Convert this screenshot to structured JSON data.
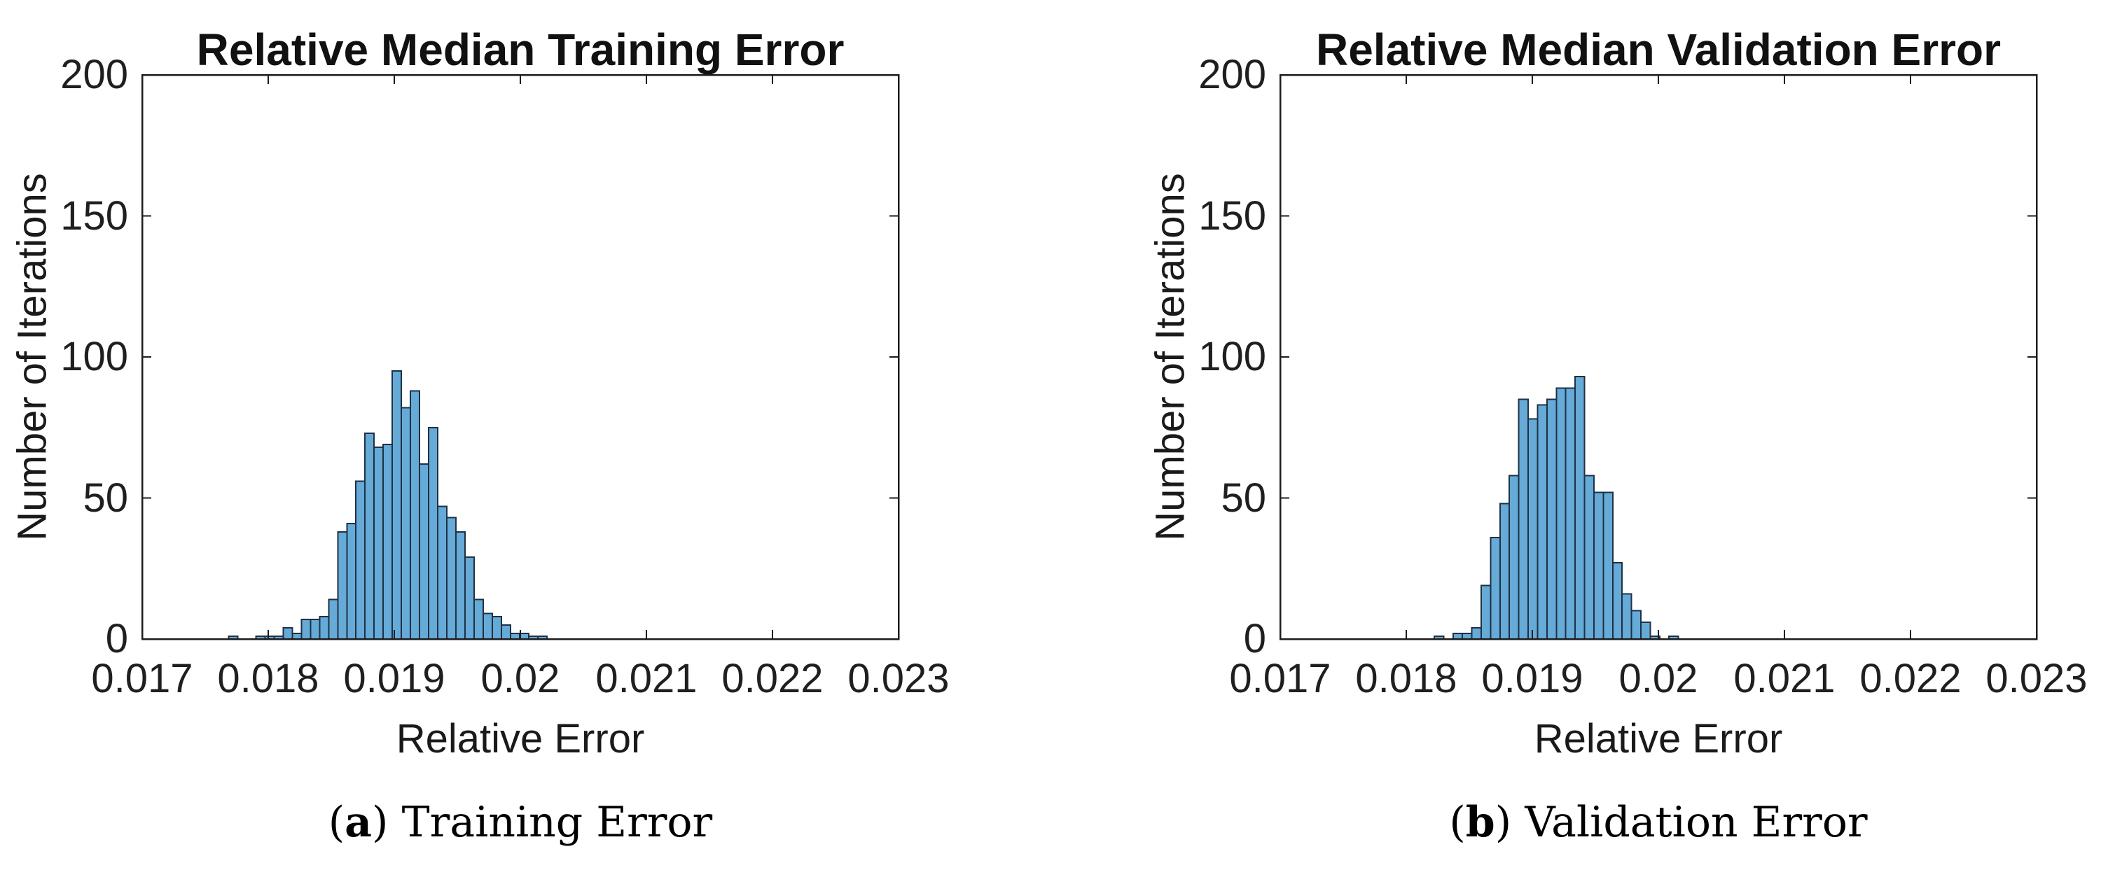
{
  "figure": {
    "background": "#ffffff"
  },
  "colors": {
    "axis": "#1c1c1c",
    "text": "#1a1a1a",
    "bar_fill": "#66aad7",
    "bar_edge": "#1f3144"
  },
  "captions": [
    {
      "open": "(",
      "letter": "a",
      "close": ")",
      "text": "Training Error"
    },
    {
      "open": "(",
      "letter": "b",
      "close": ")",
      "text": "Validation Error"
    }
  ],
  "chart_data": [
    {
      "type": "histogram",
      "title": "Relative Median Training Error",
      "xlabel": "Relative Error",
      "ylabel": "Number of Iterations",
      "xlim": [
        0.017,
        0.023
      ],
      "ylim": [
        0,
        200
      ],
      "grid": false,
      "x_tick_values": [
        0.017,
        0.018,
        0.019,
        0.02,
        0.021,
        0.022,
        0.023
      ],
      "x_tick_labels": [
        "0.017",
        "0.018",
        "0.019",
        "0.02",
        "0.021",
        "0.022",
        "0.023"
      ],
      "y_tick_values": [
        0,
        50,
        100,
        150,
        200
      ],
      "y_tick_labels": [
        "0",
        "50",
        "100",
        "150",
        "200"
      ],
      "bins": {
        "start": 0.017685,
        "width": 7.22e-05
      },
      "counts": [
        1,
        0,
        0,
        1,
        1,
        1,
        4,
        2,
        7,
        7,
        8,
        14,
        38,
        41,
        56,
        73,
        68,
        69,
        95,
        82,
        88,
        62,
        75,
        47,
        43,
        38,
        29,
        14,
        9,
        8,
        5,
        2,
        2,
        1,
        1
      ]
    },
    {
      "type": "histogram",
      "title": "Relative Median Validation Error",
      "xlabel": "Relative Error",
      "ylabel": "Number of Iterations",
      "xlim": [
        0.017,
        0.023
      ],
      "ylim": [
        0,
        200
      ],
      "grid": false,
      "x_tick_values": [
        0.017,
        0.018,
        0.019,
        0.02,
        0.021,
        0.022,
        0.023
      ],
      "x_tick_labels": [
        "0.017",
        "0.018",
        "0.019",
        "0.02",
        "0.021",
        "0.022",
        "0.023"
      ],
      "y_tick_values": [
        0,
        50,
        100,
        150,
        200
      ],
      "y_tick_labels": [
        "0",
        "50",
        "100",
        "150",
        "200"
      ],
      "bins": {
        "start": 0.018222,
        "width": 7.45e-05
      },
      "counts": [
        1,
        0,
        2,
        2,
        4,
        19,
        36,
        48,
        58,
        85,
        78,
        83,
        85,
        89,
        89,
        93,
        58,
        52,
        52,
        27,
        16,
        10,
        6,
        1,
        0,
        1
      ]
    }
  ]
}
